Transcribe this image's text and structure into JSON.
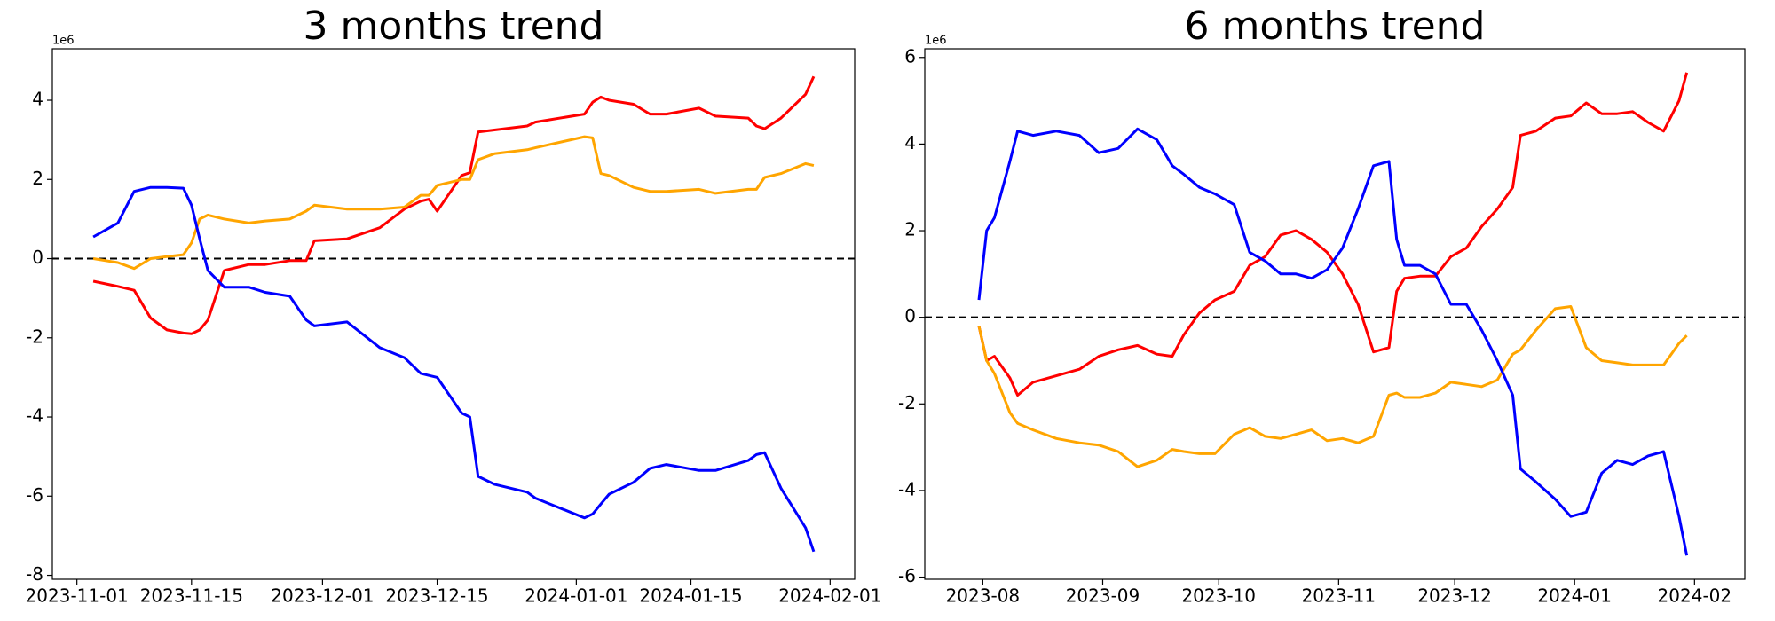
{
  "chart_data": [
    {
      "type": "line",
      "title": "3 months trend",
      "y_offset_label": "1e6",
      "x": [
        "2023-11-03",
        "2023-11-06",
        "2023-11-08",
        "2023-11-10",
        "2023-11-12",
        "2023-11-14",
        "2023-11-15",
        "2023-11-16",
        "2023-11-17",
        "2023-11-19",
        "2023-11-22",
        "2023-11-24",
        "2023-11-27",
        "2023-11-29",
        "2023-11-30",
        "2023-12-04",
        "2023-12-08",
        "2023-12-11",
        "2023-12-13",
        "2023-12-14",
        "2023-12-15",
        "2023-12-18",
        "2023-12-19",
        "2023-12-20",
        "2023-12-22",
        "2023-12-26",
        "2023-12-27",
        "2024-01-02",
        "2024-01-03",
        "2024-01-04",
        "2024-01-05",
        "2024-01-08",
        "2024-01-10",
        "2024-01-12",
        "2024-01-16",
        "2024-01-18",
        "2024-01-22",
        "2024-01-23",
        "2024-01-24",
        "2024-01-26",
        "2024-01-29",
        "2024-01-30"
      ],
      "series": [
        {
          "color": "#ff0000",
          "values": [
            -0.57,
            -0.7,
            -0.8,
            -1.5,
            -1.8,
            -1.88,
            -1.9,
            -1.8,
            -1.55,
            -0.3,
            -0.15,
            -0.15,
            -0.05,
            -0.05,
            0.45,
            0.5,
            0.78,
            1.25,
            1.45,
            1.5,
            1.2,
            2.1,
            2.17,
            3.2,
            3.25,
            3.35,
            3.45,
            3.65,
            3.95,
            4.08,
            4.0,
            3.9,
            3.65,
            3.65,
            3.8,
            3.6,
            3.55,
            3.35,
            3.28,
            3.55,
            4.15,
            4.6
          ]
        },
        {
          "color": "#ffa500",
          "values": [
            0.0,
            -0.1,
            -0.25,
            0.0,
            0.05,
            0.1,
            0.4,
            1.0,
            1.1,
            1.0,
            0.9,
            0.95,
            1.0,
            1.2,
            1.35,
            1.25,
            1.25,
            1.3,
            1.6,
            1.6,
            1.85,
            2.0,
            2.0,
            2.5,
            2.65,
            2.75,
            2.8,
            3.08,
            3.05,
            2.15,
            2.1,
            1.8,
            1.7,
            1.7,
            1.75,
            1.65,
            1.75,
            1.75,
            2.05,
            2.15,
            2.4,
            2.35
          ]
        },
        {
          "color": "#0000ff",
          "values": [
            0.55,
            0.9,
            1.7,
            1.8,
            1.8,
            1.78,
            1.35,
            0.5,
            -0.3,
            -0.72,
            -0.72,
            -0.85,
            -0.95,
            -1.55,
            -1.7,
            -1.6,
            -2.25,
            -2.5,
            -2.9,
            -2.95,
            -3.0,
            -3.9,
            -4.0,
            -5.5,
            -5.7,
            -5.9,
            -6.05,
            -6.55,
            -6.45,
            -6.2,
            -5.95,
            -5.65,
            -5.3,
            -5.2,
            -5.35,
            -5.35,
            -5.1,
            -4.95,
            -4.9,
            -5.8,
            -6.8,
            -7.4
          ]
        }
      ],
      "xlim": [
        "2023-10-29",
        "2024-02-04"
      ],
      "xticks": [
        "2023-11-01",
        "2023-11-15",
        "2023-12-01",
        "2023-12-15",
        "2024-01-01",
        "2024-01-15",
        "2024-02-01"
      ],
      "ylim": [
        -8.1,
        5.3
      ],
      "yticks": [
        -8,
        -6,
        -4,
        -2,
        0,
        2,
        4
      ],
      "reference_line": 0,
      "reference_line_color": "#000000"
    },
    {
      "type": "line",
      "title": "6 months trend",
      "y_offset_label": "1e6",
      "x": [
        "2023-07-31",
        "2023-08-02",
        "2023-08-04",
        "2023-08-08",
        "2023-08-10",
        "2023-08-14",
        "2023-08-20",
        "2023-08-26",
        "2023-08-31",
        "2023-09-05",
        "2023-09-10",
        "2023-09-15",
        "2023-09-19",
        "2023-09-22",
        "2023-09-26",
        "2023-09-30",
        "2023-10-05",
        "2023-10-09",
        "2023-10-13",
        "2023-10-17",
        "2023-10-21",
        "2023-10-25",
        "2023-10-29",
        "2023-11-02",
        "2023-11-06",
        "2023-11-10",
        "2023-11-14",
        "2023-11-16",
        "2023-11-18",
        "2023-11-22",
        "2023-11-26",
        "2023-11-30",
        "2023-12-04",
        "2023-12-08",
        "2023-12-12",
        "2023-12-16",
        "2023-12-18",
        "2023-12-22",
        "2023-12-27",
        "2023-12-31",
        "2024-01-04",
        "2024-01-08",
        "2024-01-12",
        "2024-01-16",
        "2024-01-20",
        "2024-01-24",
        "2024-01-28",
        "2024-01-30"
      ],
      "series": [
        {
          "color": "#ff0000",
          "values": [
            -0.2,
            -1.0,
            -0.9,
            -1.4,
            -1.8,
            -1.5,
            -1.35,
            -1.2,
            -0.9,
            -0.75,
            -0.65,
            -0.85,
            -0.9,
            -0.4,
            0.1,
            0.4,
            0.6,
            1.2,
            1.4,
            1.9,
            2.0,
            1.8,
            1.5,
            1.0,
            0.3,
            -0.8,
            -0.7,
            0.6,
            0.9,
            0.95,
            0.95,
            1.4,
            1.6,
            2.1,
            2.5,
            3.0,
            4.2,
            4.3,
            4.6,
            4.65,
            4.95,
            4.7,
            4.7,
            4.75,
            4.5,
            4.3,
            5.0,
            5.65
          ]
        },
        {
          "color": "#ffa500",
          "values": [
            -0.2,
            -1.0,
            -1.3,
            -2.2,
            -2.45,
            -2.6,
            -2.8,
            -2.9,
            -2.95,
            -3.1,
            -3.45,
            -3.3,
            -3.05,
            -3.1,
            -3.15,
            -3.15,
            -2.7,
            -2.55,
            -2.75,
            -2.8,
            -2.7,
            -2.6,
            -2.85,
            -2.8,
            -2.9,
            -2.75,
            -1.8,
            -1.75,
            -1.85,
            -1.85,
            -1.75,
            -1.5,
            -1.55,
            -1.6,
            -1.45,
            -0.85,
            -0.75,
            -0.3,
            0.2,
            0.25,
            -0.7,
            -1.0,
            -1.05,
            -1.1,
            -1.1,
            -1.1,
            -0.6,
            -0.42
          ]
        },
        {
          "color": "#0000ff",
          "values": [
            0.4,
            2.0,
            2.3,
            3.6,
            4.3,
            4.2,
            4.3,
            4.2,
            3.8,
            3.9,
            4.35,
            4.1,
            3.5,
            3.3,
            3.0,
            2.85,
            2.6,
            1.5,
            1.3,
            1.0,
            1.0,
            0.9,
            1.1,
            1.6,
            2.5,
            3.5,
            3.6,
            1.8,
            1.2,
            1.2,
            1.0,
            0.3,
            0.3,
            -0.3,
            -1.0,
            -1.8,
            -3.5,
            -3.8,
            -4.2,
            -4.6,
            -4.5,
            -3.6,
            -3.3,
            -3.4,
            -3.2,
            -3.1,
            -4.6,
            -5.5
          ]
        }
      ],
      "xlim": [
        "2023-07-17",
        "2024-02-14"
      ],
      "xticks": [
        {
          "value": "2023-08-01",
          "label": "2023-08"
        },
        {
          "value": "2023-09-01",
          "label": "2023-09"
        },
        {
          "value": "2023-10-01",
          "label": "2023-10"
        },
        {
          "value": "2023-11-01",
          "label": "2023-11"
        },
        {
          "value": "2023-12-01",
          "label": "2023-12"
        },
        {
          "value": "2024-01-01",
          "label": "2024-01"
        },
        {
          "value": "2024-02-01",
          "label": "2024-02"
        }
      ],
      "ylim": [
        -6.05,
        6.2
      ],
      "yticks": [
        -6,
        -4,
        -2,
        0,
        2,
        4,
        6
      ],
      "reference_line": 0,
      "reference_line_color": "#000000"
    }
  ]
}
